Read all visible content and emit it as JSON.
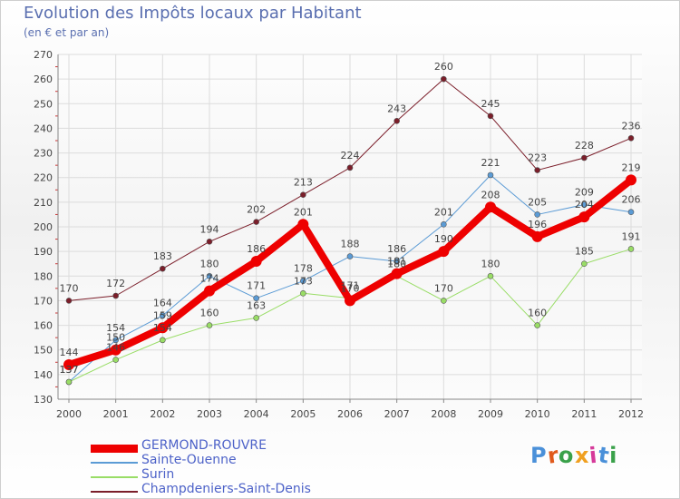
{
  "title": "Evolution des Impôts locaux par Habitant",
  "subtitle": "(en € et par an)",
  "logo_text": "Proxiti",
  "chart_data": {
    "type": "line",
    "title": "Evolution des Impôts locaux par Habitant",
    "ylabel": "(en € et par an)",
    "xlabel": "",
    "x": [
      "2000",
      "2001",
      "2002",
      "2003",
      "2004",
      "2005",
      "2006",
      "2007",
      "2008",
      "2009",
      "2010",
      "2011",
      "2012"
    ],
    "ylim": [
      130,
      270
    ],
    "yticks": [
      130,
      140,
      150,
      160,
      170,
      180,
      190,
      200,
      210,
      220,
      230,
      240,
      250,
      260,
      270
    ],
    "grid": true,
    "legend_position": "bottom-left",
    "series": [
      {
        "name": "GERMOND-ROUVRE",
        "color": "#ee0000",
        "width": 8,
        "values": [
          144,
          150,
          159,
          174,
          186,
          201,
          170,
          181,
          190,
          208,
          196,
          204,
          219
        ],
        "labels": [
          "144",
          "150",
          "159",
          "174",
          "186",
          "201",
          "170",
          "181",
          "190",
          "208",
          "196",
          "204",
          "219"
        ]
      },
      {
        "name": "Sainte-Ouenne",
        "color": "#5b9bd5",
        "width": 1,
        "values": [
          137,
          154,
          164,
          180,
          171,
          178,
          188,
          186,
          201,
          221,
          205,
          209,
          206
        ],
        "labels": [
          "137",
          "154",
          "164",
          "180",
          "171",
          "178",
          "188",
          "186",
          "201",
          "221",
          "205",
          "209",
          "206"
        ]
      },
      {
        "name": "Surin",
        "color": "#99dd66",
        "width": 1,
        "values": [
          137,
          146,
          154,
          160,
          163,
          173,
          171,
          180,
          170,
          180,
          160,
          185,
          191
        ],
        "labels": [
          "137",
          "146",
          "154",
          "160",
          "163",
          "173",
          "171",
          "180",
          "170",
          "180",
          "160",
          "185",
          "191"
        ]
      },
      {
        "name": "Champdeniers-Saint-Denis",
        "color": "#7b1e2a",
        "width": 1,
        "values": [
          170,
          172,
          183,
          194,
          202,
          213,
          224,
          243,
          260,
          245,
          223,
          228,
          236
        ],
        "labels": [
          "170",
          "172",
          "183",
          "194",
          "202",
          "213",
          "224",
          "243",
          "260",
          "245",
          "223",
          "228",
          "236"
        ]
      }
    ]
  }
}
